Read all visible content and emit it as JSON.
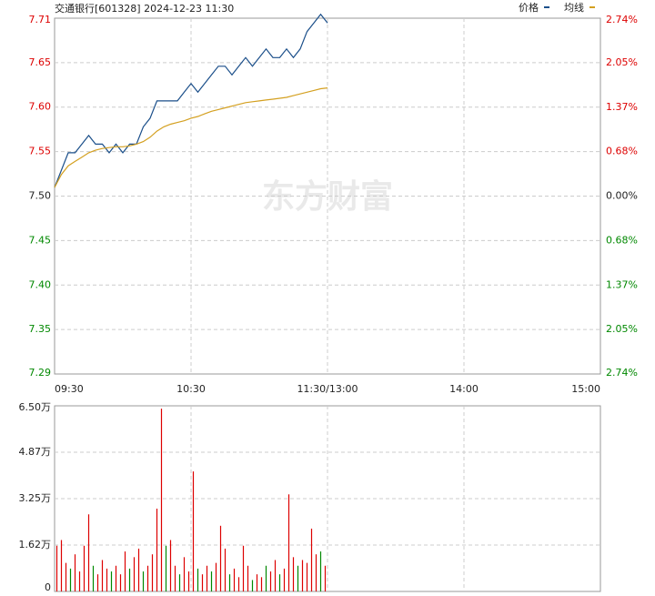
{
  "chart_data": [
    {
      "type": "line",
      "title": "交通银行[601328] 2024-12-23 11:30",
      "watermark": "东方财富",
      "legend": "top-right",
      "grid": true,
      "x": [
        0,
        3,
        6,
        9,
        12,
        15,
        18,
        21,
        24,
        27,
        30,
        33,
        36,
        39,
        42,
        45,
        48,
        51,
        54,
        57,
        60,
        63,
        66,
        69,
        72,
        75,
        78,
        81,
        84,
        87,
        90,
        93,
        96,
        99,
        102,
        105,
        108,
        111,
        114,
        117,
        120
      ],
      "xlim": [
        0,
        240
      ],
      "xticks": [
        {
          "value": 0,
          "label": "09:30"
        },
        {
          "value": 60,
          "label": "10:30"
        },
        {
          "value": 120,
          "label": "11:30/13:00"
        },
        {
          "value": 180,
          "label": "14:00"
        },
        {
          "value": 240,
          "label": "15:00"
        }
      ],
      "ylim": [
        7.2945,
        7.7055
      ],
      "yticks": [
        {
          "value": 7.7055,
          "label": "7.71"
        },
        {
          "value": 7.6541,
          "label": "7.65"
        },
        {
          "value": 7.6028,
          "label": "7.60"
        },
        {
          "value": 7.5514,
          "label": "7.55"
        },
        {
          "value": 7.5,
          "label": "7.50"
        },
        {
          "value": 7.4486,
          "label": "7.45"
        },
        {
          "value": 7.3972,
          "label": "7.40"
        },
        {
          "value": 7.3459,
          "label": "7.35"
        },
        {
          "value": 7.2945,
          "label": "7.29"
        }
      ],
      "y2lim": [
        -2.74,
        2.74
      ],
      "y2ticks": [
        {
          "value": 2.74,
          "label": "2.74%"
        },
        {
          "value": 2.055,
          "label": "2.05%"
        },
        {
          "value": 1.37,
          "label": "1.37%"
        },
        {
          "value": 0.685,
          "label": "0.68%"
        },
        {
          "value": 0,
          "label": "0.00%"
        },
        {
          "value": -0.685,
          "label": "0.68%"
        },
        {
          "value": -1.37,
          "label": "1.37%"
        },
        {
          "value": -2.055,
          "label": "2.05%"
        },
        {
          "value": -2.74,
          "label": "2.74%"
        }
      ],
      "series": [
        {
          "name": "价格",
          "color": "#1b4f8a",
          "values": [
            7.51,
            7.53,
            7.55,
            7.55,
            7.56,
            7.57,
            7.56,
            7.56,
            7.55,
            7.56,
            7.55,
            7.56,
            7.56,
            7.58,
            7.59,
            7.61,
            7.61,
            7.61,
            7.61,
            7.62,
            7.63,
            7.62,
            7.63,
            7.64,
            7.65,
            7.65,
            7.64,
            7.65,
            7.66,
            7.65,
            7.66,
            7.67,
            7.66,
            7.66,
            7.67,
            7.66,
            7.67,
            7.69,
            7.7,
            7.71,
            7.7
          ]
        },
        {
          "name": "均线",
          "color": "#d4a020",
          "values": [
            7.51,
            7.525,
            7.535,
            7.54,
            7.545,
            7.55,
            7.553,
            7.555,
            7.556,
            7.557,
            7.557,
            7.558,
            7.56,
            7.563,
            7.568,
            7.575,
            7.58,
            7.583,
            7.585,
            7.587,
            7.59,
            7.592,
            7.595,
            7.598,
            7.6,
            7.602,
            7.604,
            7.606,
            7.608,
            7.609,
            7.61,
            7.611,
            7.612,
            7.613,
            7.614,
            7.616,
            7.618,
            7.62,
            7.622,
            7.624,
            7.625
          ]
        }
      ]
    },
    {
      "type": "bar",
      "grid": true,
      "x": [
        0,
        2,
        4,
        6,
        8,
        10,
        12,
        14,
        16,
        18,
        20,
        22,
        24,
        26,
        28,
        30,
        32,
        34,
        36,
        38,
        40,
        42,
        44,
        46,
        48,
        50,
        52,
        54,
        56,
        58,
        60,
        62,
        64,
        66,
        68,
        70,
        72,
        74,
        76,
        78,
        80,
        82,
        84,
        86,
        88,
        90,
        92,
        94,
        96,
        98,
        100,
        102,
        104,
        106,
        108,
        110,
        112,
        114,
        116,
        118
      ],
      "xlim": [
        0,
        240
      ],
      "xticks": [
        0,
        60,
        120,
        180,
        240
      ],
      "ylim": [
        0,
        6.5
      ],
      "yticks": [
        0,
        {
          "value": 1.625,
          "label": "1.62万"
        },
        {
          "value": 3.25,
          "label": "3.25万"
        },
        {
          "value": 4.875,
          "label": "4.87万"
        },
        {
          "value": 6.5,
          "label": "6.50万"
        }
      ],
      "values": [
        1.6,
        1.8,
        1.0,
        0.8,
        1.3,
        0.7,
        1.6,
        2.7,
        0.9,
        0.6,
        1.1,
        0.8,
        0.7,
        0.9,
        0.6,
        1.4,
        0.8,
        1.2,
        1.5,
        0.7,
        0.9,
        1.3,
        2.9,
        6.4,
        1.6,
        1.8,
        0.9,
        0.6,
        1.2,
        0.7,
        4.2,
        0.8,
        0.6,
        0.9,
        0.7,
        1.0,
        2.3,
        1.5,
        0.6,
        0.8,
        0.5,
        1.6,
        0.9,
        0.4,
        0.6,
        0.5,
        0.9,
        0.7,
        1.1,
        0.6,
        0.8,
        3.4,
        1.2,
        0.9,
        1.1,
        1.0,
        2.2,
        1.3,
        1.4,
        0.9
      ],
      "colors": [
        "#d00",
        "#d00",
        "#d00",
        "#080",
        "#d00",
        "#d00",
        "#d00",
        "#d00",
        "#080",
        "#d00",
        "#d00",
        "#d00",
        "#080",
        "#d00",
        "#d00",
        "#d00",
        "#080",
        "#d00",
        "#d00",
        "#080",
        "#d00",
        "#d00",
        "#d00",
        "#d00",
        "#080",
        "#d00",
        "#d00",
        "#080",
        "#d00",
        "#d00",
        "#d00",
        "#080",
        "#d00",
        "#d00",
        "#080",
        "#d00",
        "#d00",
        "#d00",
        "#080",
        "#d00",
        "#d00",
        "#d00",
        "#d00",
        "#080",
        "#d00",
        "#d00",
        "#080",
        "#d00",
        "#d00",
        "#080",
        "#d00",
        "#d00",
        "#d00",
        "#080",
        "#d00",
        "#d00",
        "#d00",
        "#d00",
        "#080",
        "#d00"
      ]
    }
  ]
}
